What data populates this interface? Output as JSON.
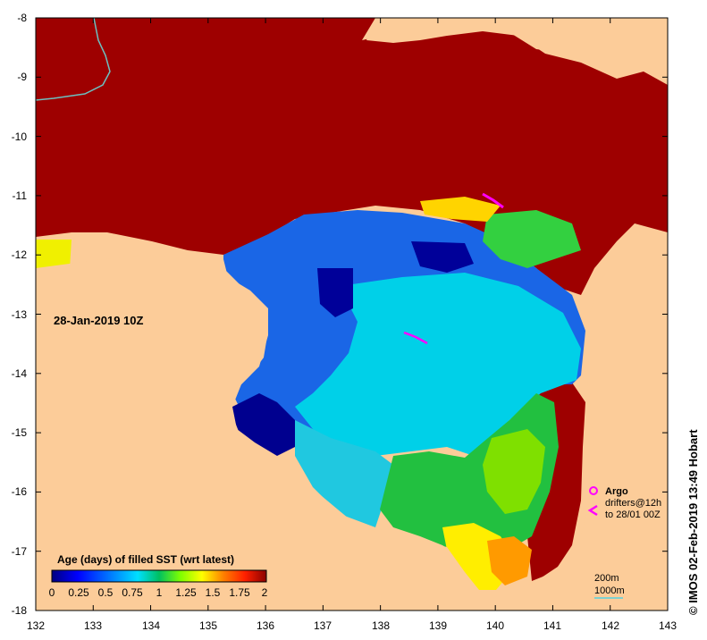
{
  "map": {
    "timestamp": "28-Jan-2019 10Z",
    "credit": "© IMOS 02-Feb-2019 13:49 Hobart",
    "x_ticks": [
      "132",
      "133",
      "134",
      "135",
      "136",
      "137",
      "138",
      "139",
      "140",
      "141",
      "142",
      "143"
    ],
    "y_ticks": [
      "-8",
      "-9",
      "-10",
      "-11",
      "-12",
      "-13",
      "-14",
      "-15",
      "-16",
      "-17",
      "-18"
    ],
    "xlim": [
      132,
      143
    ],
    "ylim": [
      -18,
      -8
    ]
  },
  "legend": {
    "title": "Age (days) of filled SST (wrt latest)",
    "tick_labels": [
      "0",
      "0.25",
      "0.5",
      "0.75",
      "1",
      "1.25",
      "1.5",
      "1.75",
      "2"
    ],
    "colors": [
      "#00007f",
      "#0000ff",
      "#0080ff",
      "#00dfff",
      "#00c060",
      "#7fff00",
      "#ffff00",
      "#ff8000",
      "#ff2000",
      "#8b0000"
    ]
  },
  "annotations": {
    "argo_label": "Argo",
    "drifters_label": "drifters@12h",
    "drifters_sub": "to 28/01 00Z",
    "depth_200": "200m",
    "depth_1000": "1000m"
  },
  "colors": {
    "land": "#fccc99",
    "dark_red": "#9e0000",
    "marker": "#ff00ff",
    "contour_1000": "#7dd0d0"
  }
}
